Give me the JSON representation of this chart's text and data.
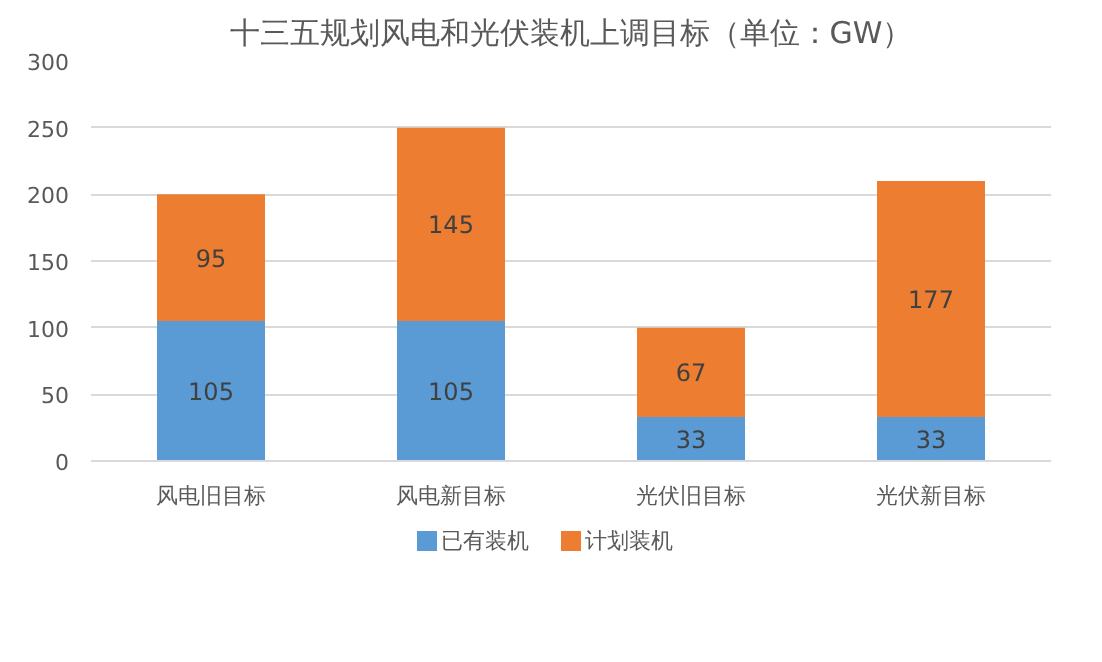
{
  "chart_data": {
    "type": "bar",
    "title": "十三五规划风电和光伏装机上调目标（单位：GW）",
    "categories": [
      "风电旧目标",
      "风电新目标",
      "光伏旧目标",
      "光伏新目标"
    ],
    "stacked": true,
    "data_labels": true,
    "ylim": [
      0,
      300
    ],
    "yticks": [
      0,
      50,
      100,
      150,
      200,
      250,
      300
    ],
    "grid": "y",
    "legend": "bottom",
    "series": [
      {
        "name": "已有装机",
        "color": "#5b9bd5",
        "values": [
          105,
          105,
          33,
          33
        ]
      },
      {
        "name": "计划装机",
        "color": "#ed7d31",
        "values": [
          95,
          145,
          67,
          177
        ]
      }
    ]
  }
}
